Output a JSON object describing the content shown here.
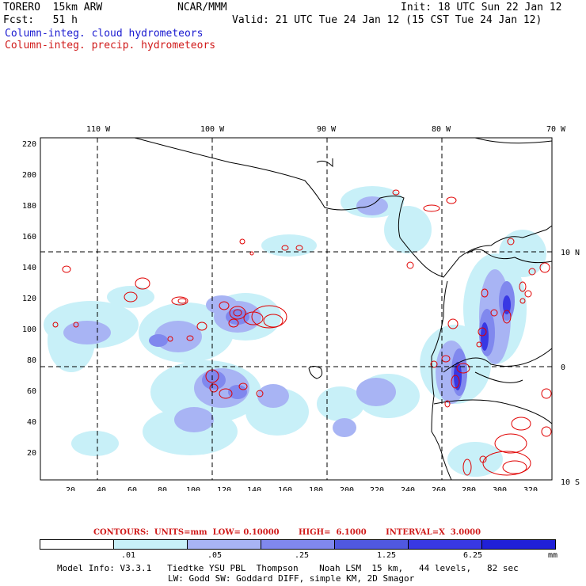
{
  "header": {
    "model": "TORERO  15km ARW",
    "org": "NCAR/MMM",
    "init": "Init: 18 UTC Sun 22 Jan 12",
    "fcst": "Fcst:   51 h",
    "valid": "Valid: 21 UTC Tue 24 Jan 12 (15 CST Tue 24 Jan 12)",
    "field1": "Column-integ. cloud hydrometeors",
    "field2": "Column-integ. precip. hydrometeors"
  },
  "map": {
    "lon_labels": [
      "110 W",
      "100 W",
      "90 W",
      "80 W",
      "70 W"
    ],
    "lat_labels": [
      "10 N",
      "0",
      "10 S"
    ],
    "x_ticks": [
      "20",
      "40",
      "60",
      "80",
      "100",
      "120",
      "140",
      "160",
      "180",
      "200",
      "220",
      "240",
      "260",
      "280",
      "300",
      "320"
    ],
    "y_ticks": [
      "220",
      "200",
      "180",
      "160",
      "140",
      "120",
      "100",
      "80",
      "60",
      "40",
      "20"
    ],
    "colors": {
      "light": "#c8f0f8",
      "mid1": "#a8b4f4",
      "mid2": "#8088ee",
      "mid3": "#5058e0",
      "dark": "#2020d8",
      "precip": "#e00000",
      "land": "#000000",
      "grid": "#000000"
    }
  },
  "contours_text": "CONTOURS:  UNITS=mm  LOW= 0.10000       HIGH=  6.1000       INTERVAL=X  3.0000",
  "legend": {
    "labels": [
      ".01",
      ".05",
      ".25",
      "1.25",
      "6.25"
    ],
    "unit": "mm",
    "colors": [
      "#ffffff",
      "#c8f0f8",
      "#a8b4f4",
      "#8088ee",
      "#5058e0",
      "#3838e4",
      "#2020d8"
    ]
  },
  "model_info": {
    "line1": "Model Info: V3.3.1   Tiedtke YSU PBL  Thompson    Noah LSM  15 km,   44 levels,   82 sec",
    "line2": "LW: Godd SW: Goddard DIFF, simple KM, 2D Smagor"
  }
}
